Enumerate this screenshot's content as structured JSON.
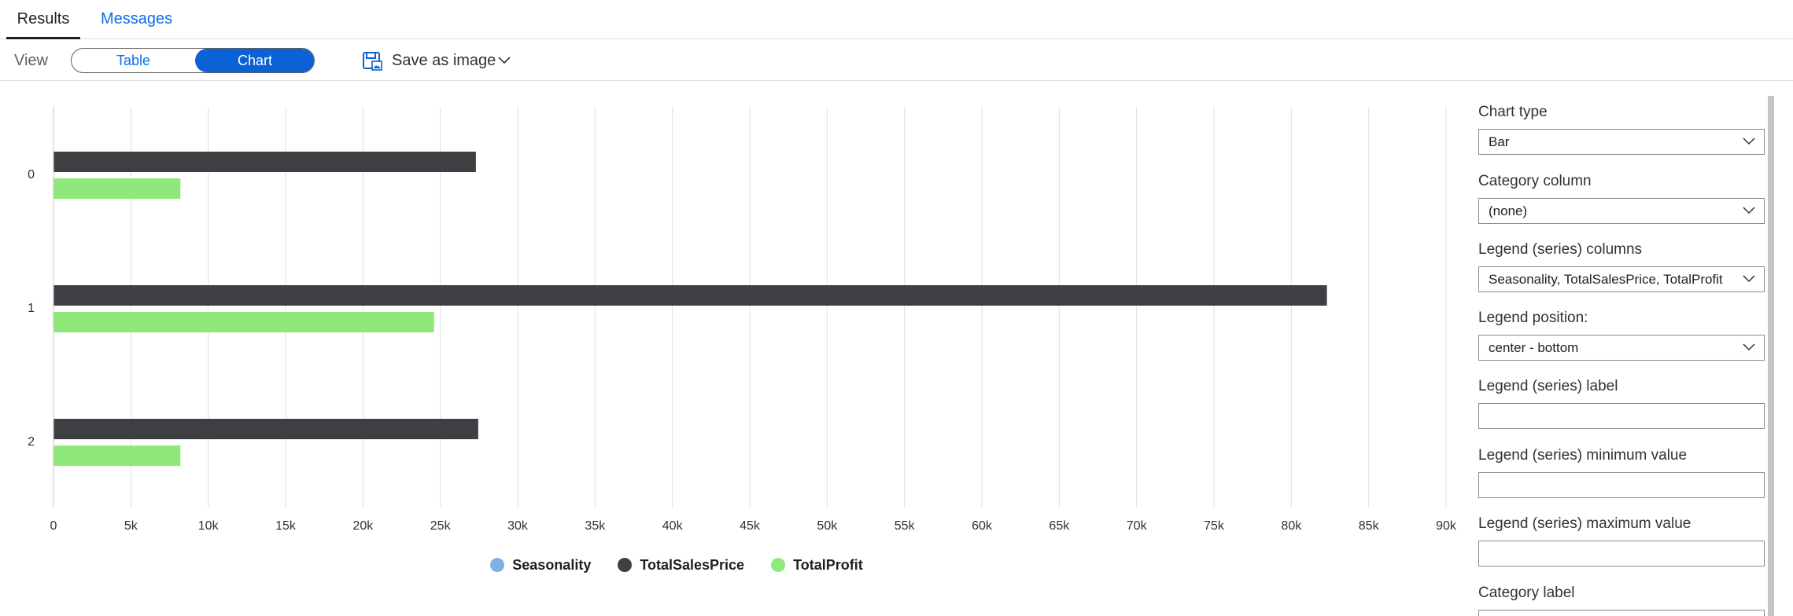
{
  "tabs": {
    "results": "Results",
    "messages": "Messages"
  },
  "toolbar": {
    "view_label": "View",
    "toggle_table": "Table",
    "toggle_chart": "Chart",
    "save_label": "Save as image"
  },
  "colors": {
    "accent": "#0b62d6",
    "series_seasonality": "#7fb0e6",
    "series_total_sales": "#3f3f43",
    "series_total_profit": "#8fe87a"
  },
  "chart_data": {
    "type": "bar",
    "orientation": "horizontal",
    "categories": [
      "0",
      "1",
      "2"
    ],
    "series": [
      {
        "name": "Seasonality",
        "values": [
          0,
          1,
          2
        ]
      },
      {
        "name": "TotalSalesPrice",
        "values": [
          27300,
          82300,
          27450
        ]
      },
      {
        "name": "TotalProfit",
        "values": [
          8200,
          24600,
          8200
        ]
      }
    ],
    "xlim": [
      0,
      90000
    ],
    "x_ticks": [
      0,
      5000,
      10000,
      15000,
      20000,
      25000,
      30000,
      35000,
      40000,
      45000,
      50000,
      55000,
      60000,
      65000,
      70000,
      75000,
      80000,
      85000,
      90000
    ],
    "x_tick_labels": [
      "0",
      "5k",
      "10k",
      "15k",
      "20k",
      "25k",
      "30k",
      "35k",
      "40k",
      "45k",
      "50k",
      "55k",
      "60k",
      "65k",
      "70k",
      "75k",
      "80k",
      "85k",
      "90k"
    ],
    "grid": true,
    "legend_position": "center-bottom"
  },
  "legend": {
    "items": [
      "Seasonality",
      "TotalSalesPrice",
      "TotalProfit"
    ]
  },
  "settings": {
    "chart_type_label": "Chart type",
    "chart_type_value": "Bar",
    "category_column_label": "Category column",
    "category_column_value": "(none)",
    "legend_columns_label": "Legend (series) columns",
    "legend_columns_value": "Seasonality, TotalSalesPrice, TotalProfit",
    "legend_position_label": "Legend position:",
    "legend_position_value": "center - bottom",
    "legend_label_label": "Legend (series) label",
    "legend_label_value": "",
    "legend_min_label": "Legend (series) minimum value",
    "legend_min_value": "",
    "legend_max_label": "Legend (series) maximum value",
    "legend_max_value": "",
    "category_label_label": "Category label"
  }
}
